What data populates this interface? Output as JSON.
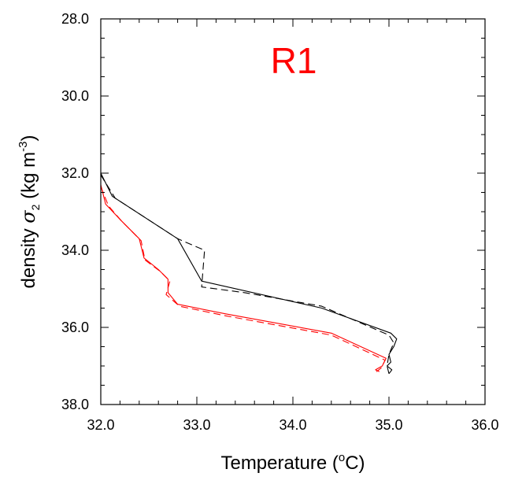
{
  "chart_data": {
    "type": "line",
    "title": "R1",
    "title_color": "#ff0000",
    "xlabel": {
      "main": "Temperature (",
      "sup": "o",
      "unit": "C)"
    },
    "ylabel": {
      "main": "density ",
      "symbol": "σ",
      "sub": "2",
      "unit": " (kg m",
      "sup": "-3",
      "close": ")"
    },
    "xlim": [
      32.0,
      36.0
    ],
    "ylim": [
      28.0,
      38.0
    ],
    "y_inverted": true,
    "xticks": [
      "32.0",
      "33.0",
      "34.0",
      "35.0",
      "36.0"
    ],
    "yticks": [
      "28.0",
      "30.0",
      "32.0",
      "34.0",
      "36.0",
      "38.0"
    ],
    "grid": false,
    "series": [
      {
        "color": "#000000",
        "dash": "solid",
        "x": [
          32.0,
          32.12,
          32.8,
          33.05,
          34.3,
          35.02,
          35.08,
          35.05,
          35.0,
          35.02,
          34.98,
          35.03,
          35.0
        ],
        "y": [
          32.0,
          32.6,
          33.7,
          34.8,
          35.5,
          36.15,
          36.3,
          36.5,
          36.7,
          36.9,
          37.0,
          37.1,
          37.2
        ]
      },
      {
        "color": "#000000",
        "dash": "dashed",
        "x": [
          32.0,
          32.15,
          32.8,
          33.08,
          33.05,
          33.5,
          34.3,
          35.0,
          35.05,
          35.0,
          34.98,
          35.0
        ],
        "y": [
          32.05,
          32.65,
          33.7,
          34.0,
          34.95,
          35.1,
          35.45,
          36.2,
          36.4,
          36.7,
          37.0,
          37.2
        ]
      },
      {
        "color": "#ff0000",
        "dash": "solid",
        "x": [
          32.0,
          32.05,
          32.2,
          32.4,
          32.45,
          32.6,
          32.7,
          32.7,
          32.8,
          33.3,
          34.4,
          34.97,
          34.93,
          34.86,
          34.9
        ],
        "y": [
          32.3,
          32.8,
          33.2,
          33.7,
          34.2,
          34.5,
          34.75,
          35.1,
          35.4,
          35.65,
          36.15,
          36.8,
          37.0,
          37.1,
          37.15
        ]
      },
      {
        "color": "#ff0000",
        "dash": "dashed",
        "x": [
          32.0,
          32.08,
          32.22,
          32.42,
          32.46,
          32.62,
          32.72,
          32.68,
          32.82,
          33.3,
          34.4,
          34.96,
          34.92,
          34.87
        ],
        "y": [
          32.35,
          32.85,
          33.25,
          33.75,
          34.25,
          34.55,
          34.8,
          35.15,
          35.45,
          35.7,
          36.2,
          36.85,
          37.05,
          37.15
        ]
      }
    ]
  }
}
